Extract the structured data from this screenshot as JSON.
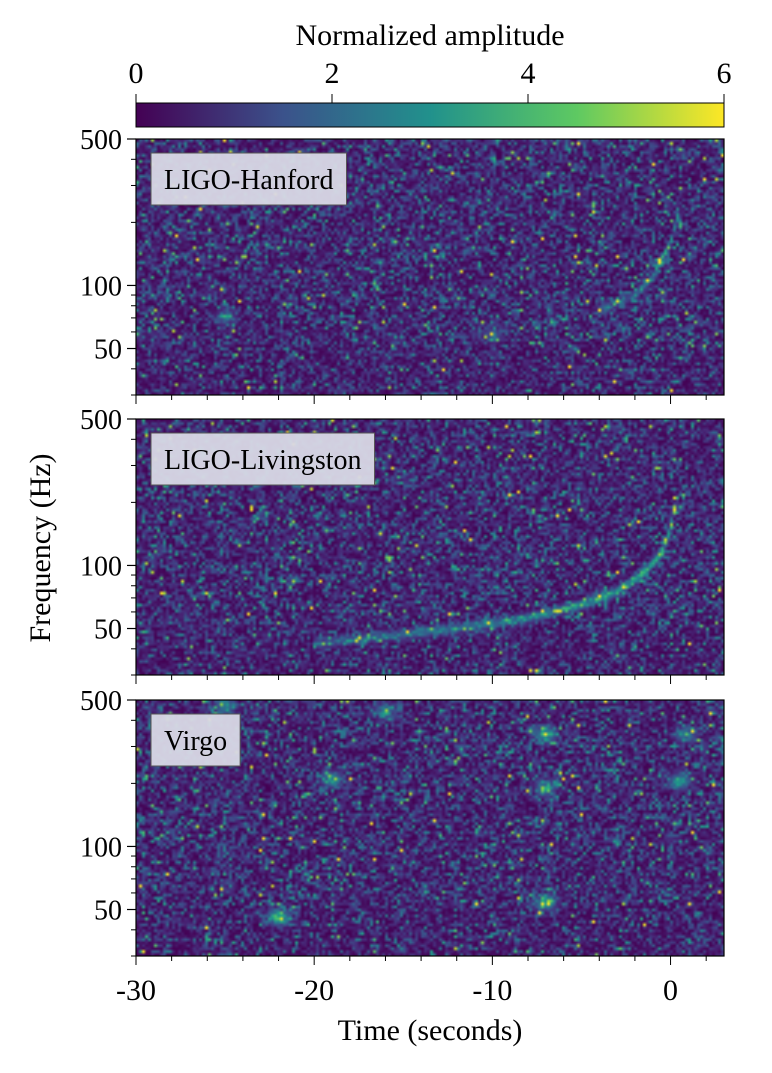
{
  "chart_data": {
    "type": "heatmap",
    "colorbar": {
      "label": "Normalized amplitude",
      "range": [
        0,
        6
      ],
      "ticks": [
        0,
        2,
        4,
        6
      ],
      "colormap": "viridis",
      "colors": [
        "#440154",
        "#3b528b",
        "#21918c",
        "#5ec962",
        "#fde725"
      ]
    },
    "xlabel": "Time (seconds)",
    "ylabel": "Frequency (Hz)",
    "xlim": [
      -30,
      3
    ],
    "x_ticks": [
      -30,
      -20,
      -10,
      0
    ],
    "ylim": [
      30,
      500
    ],
    "y_scale": "log",
    "y_ticks": [
      50,
      100,
      500
    ],
    "panels": [
      {
        "label": "LIGO-Hanford",
        "chirp": {
          "t": [
            -4,
            -2,
            -1,
            0,
            0.5
          ],
          "f": [
            75,
            90,
            110,
            160,
            230
          ],
          "peak": 3.5
        },
        "blips": [
          {
            "t": -25,
            "f": 70,
            "a": 2.2
          },
          {
            "t": -10,
            "f": 58,
            "a": 2.0
          }
        ]
      },
      {
        "label": "LIGO-Livingston",
        "chirp": {
          "t": [
            -20,
            -17,
            -12,
            -8,
            -5,
            -3,
            -1.5,
            -0.5,
            0,
            0.3
          ],
          "f": [
            42,
            45,
            50,
            56,
            65,
            75,
            92,
            115,
            150,
            200
          ],
          "peak": 4.5
        },
        "blips": []
      },
      {
        "label": "Virgo",
        "chirp": null,
        "blips": [
          {
            "t": -22,
            "f": 46,
            "a": 4.5
          },
          {
            "t": -7,
            "f": 54,
            "a": 3.8
          },
          {
            "t": -7,
            "f": 340,
            "a": 3.8
          },
          {
            "t": -7,
            "f": 190,
            "a": 3.2
          },
          {
            "t": -19,
            "f": 210,
            "a": 3.0
          },
          {
            "t": -16,
            "f": 440,
            "a": 2.8
          },
          {
            "t": -25,
            "f": 470,
            "a": 2.6
          },
          {
            "t": 0.5,
            "f": 205,
            "a": 3.4
          },
          {
            "t": 0.8,
            "f": 340,
            "a": 2.6
          }
        ]
      }
    ]
  }
}
